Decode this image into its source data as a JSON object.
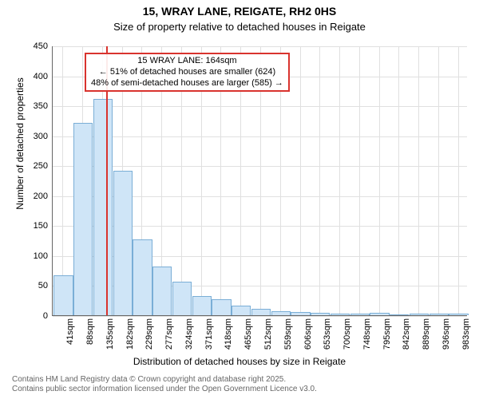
{
  "chart": {
    "type": "histogram",
    "title": "15, WRAY LANE, REIGATE, RH2 0HS",
    "title_fontsize": 14,
    "subtitle": "Size of property relative to detached houses in Reigate",
    "subtitle_fontsize": 13,
    "ylabel": "Number of detached properties",
    "xlabel": "Distribution of detached houses by size in Reigate",
    "axis_label_fontsize": 12,
    "tick_fontsize": 11,
    "background_color": "#ffffff",
    "grid_color": "#e0e0e0",
    "bar_fill": "#cfe5f7",
    "bar_stroke": "#7aaed6",
    "marker_color": "#d9332e",
    "annotation_border": "#d9332e",
    "y": {
      "min": 0,
      "max": 450,
      "step": 50,
      "ticks": [
        0,
        50,
        100,
        150,
        200,
        250,
        300,
        350,
        400,
        450
      ]
    },
    "x_categories": [
      "41sqm",
      "88sqm",
      "135sqm",
      "182sqm",
      "229sqm",
      "277sqm",
      "324sqm",
      "371sqm",
      "418sqm",
      "465sqm",
      "512sqm",
      "559sqm",
      "606sqm",
      "653sqm",
      "700sqm",
      "748sqm",
      "795sqm",
      "842sqm",
      "889sqm",
      "936sqm",
      "983sqm"
    ],
    "values": [
      65,
      320,
      360,
      240,
      125,
      80,
      55,
      30,
      25,
      15,
      10,
      5,
      4,
      3,
      2,
      2,
      3,
      0,
      1,
      1,
      1
    ],
    "bar_width_ratio": 0.9,
    "marker": {
      "lines": [
        "15 WRAY LANE: 164sqm",
        "← 51% of detached houses are smaller (624)",
        "48% of semi-detached houses are larger (585) →"
      ],
      "x_position_ratio": 0.128
    },
    "footer": {
      "line1": "Contains HM Land Registry data © Crown copyright and database right 2025.",
      "line2": "Contains public sector information licensed under the Open Government Licence v3.0."
    }
  }
}
